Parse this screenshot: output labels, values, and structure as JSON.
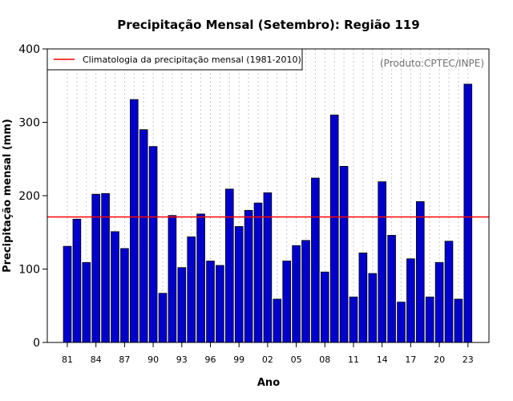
{
  "chart_data": {
    "type": "bar",
    "title": "Precipitação Mensal (Setembro): Região 119",
    "xlabel": "Ano",
    "ylabel": "Precipitação mensal (mm)",
    "ylim": [
      0,
      400
    ],
    "yticks": [
      0,
      100,
      200,
      300,
      400
    ],
    "categories": [
      "81",
      "82",
      "83",
      "84",
      "85",
      "86",
      "87",
      "88",
      "89",
      "90",
      "91",
      "92",
      "93",
      "94",
      "95",
      "96",
      "97",
      "98",
      "99",
      "00",
      "01",
      "02",
      "03",
      "04",
      "05",
      "06",
      "07",
      "08",
      "09",
      "10",
      "11",
      "12",
      "13",
      "14",
      "15",
      "16",
      "17",
      "18",
      "19",
      "20",
      "21",
      "22",
      "23"
    ],
    "xtick_labels": [
      "81",
      "84",
      "87",
      "90",
      "93",
      "96",
      "99",
      "02",
      "05",
      "08",
      "11",
      "14",
      "17",
      "20",
      "23"
    ],
    "values": [
      131,
      168,
      109,
      202,
      203,
      151,
      128,
      331,
      290,
      267,
      67,
      173,
      102,
      144,
      175,
      111,
      105,
      209,
      158,
      180,
      190,
      204,
      59,
      111,
      132,
      139,
      224,
      96,
      310,
      240,
      62,
      122,
      94,
      219,
      146,
      55,
      114,
      192,
      62,
      109,
      138,
      59,
      352
    ],
    "climatology": {
      "label": "Climatologia da precipitação mensal (1981-2010)",
      "value": 171
    },
    "source_note": "(Produto:CPTEC/INPE)",
    "grid": "vertical dotted",
    "legend_position": "top-left",
    "colors": {
      "bar_fill": "#0000cd",
      "bar_edge": "#000000",
      "climatology_line": "#ff0000",
      "grid": "#c8c8c8",
      "note": "#707070"
    }
  }
}
